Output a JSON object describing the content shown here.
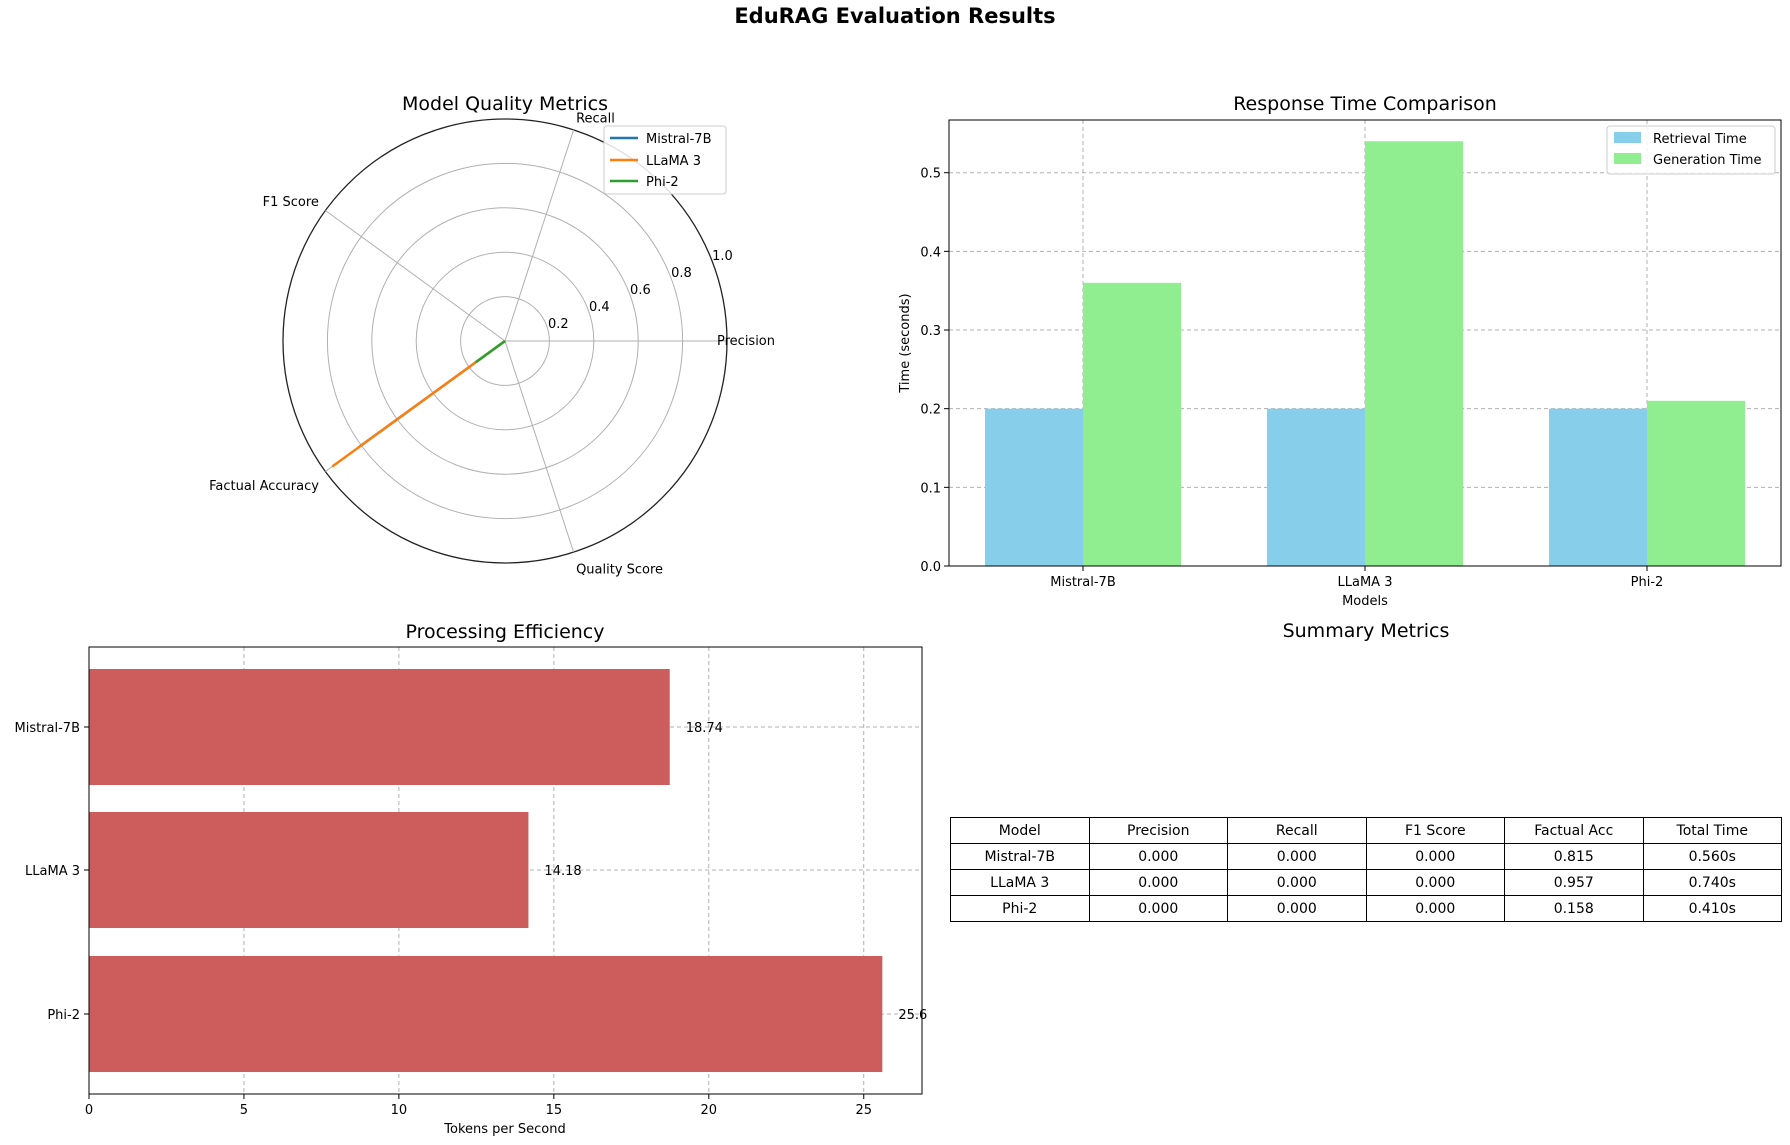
{
  "figure": {
    "title": "EduRAG Evaluation Results"
  },
  "chart_data": [
    {
      "type": "radar",
      "title": "Model Quality Metrics",
      "axes": [
        "Precision",
        "Recall",
        "F1 Score",
        "Factual Accuracy",
        "Quality Score"
      ],
      "rgrid": [
        "0.2",
        "0.4",
        "0.6",
        "0.8",
        "1.0"
      ],
      "ylim": [
        0,
        1.0
      ],
      "legend_loc": "upper-right",
      "series": [
        {
          "name": "Mistral-7B",
          "color": "#1f77b4",
          "values": [
            0.0,
            0.0,
            0.0,
            0.815,
            0.0
          ]
        },
        {
          "name": "LLaMA 3",
          "color": "#ff7f0e",
          "values": [
            0.0,
            0.0,
            0.0,
            0.957,
            0.0
          ]
        },
        {
          "name": "Phi-2",
          "color": "#2ca02c",
          "values": [
            0.0,
            0.0,
            0.0,
            0.158,
            0.0
          ]
        }
      ]
    },
    {
      "type": "bar",
      "title": "Response Time Comparison",
      "xlabel": "Models",
      "ylabel": "Time (seconds)",
      "categories": [
        "Mistral-7B",
        "LLaMA 3",
        "Phi-2"
      ],
      "ylim": [
        0,
        0.567
      ],
      "yticks": [
        "0.0",
        "0.1",
        "0.2",
        "0.3",
        "0.4",
        "0.5"
      ],
      "grid": true,
      "legend_loc": "upper-right",
      "series": [
        {
          "name": "Retrieval Time",
          "color": "#87ceeb",
          "values": [
            0.2,
            0.2,
            0.2
          ]
        },
        {
          "name": "Generation Time",
          "color": "#90ee90",
          "values": [
            0.36,
            0.54,
            0.21
          ]
        }
      ]
    },
    {
      "type": "barh",
      "title": "Processing Efficiency",
      "xlabel": "Tokens per Second",
      "categories": [
        "Mistral-7B",
        "LLaMA 3",
        "Phi-2"
      ],
      "values": [
        18.74,
        14.18,
        25.6
      ],
      "labels": [
        "18.74",
        "14.18",
        "25.6"
      ],
      "color": "#cd5c5c",
      "xlim": [
        0,
        26.88
      ],
      "xticks": [
        "0",
        "5",
        "10",
        "15",
        "20",
        "25"
      ],
      "grid": true
    },
    {
      "type": "table",
      "title": "Summary Metrics",
      "columns": [
        "Model",
        "Precision",
        "Recall",
        "F1 Score",
        "Factual Acc",
        "Total Time"
      ],
      "rows": [
        [
          "Mistral-7B",
          "0.000",
          "0.000",
          "0.000",
          "0.815",
          "0.560s"
        ],
        [
          "LLaMA 3",
          "0.000",
          "0.000",
          "0.000",
          "0.957",
          "0.740s"
        ],
        [
          "Phi-2",
          "0.000",
          "0.000",
          "0.000",
          "0.158",
          "0.410s"
        ]
      ]
    }
  ]
}
